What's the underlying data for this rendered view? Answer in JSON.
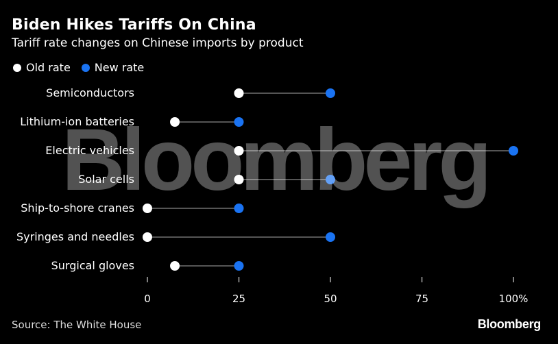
{
  "header": {
    "title": "Biden Hikes Tariffs On China",
    "subtitle": "Tariff rate changes on Chinese imports by product"
  },
  "legend": {
    "old_label": "Old rate",
    "new_label": "New rate"
  },
  "colors": {
    "old": "#ffffff",
    "new": "#1a73f2",
    "line": "#555555",
    "background": "#000000"
  },
  "chart_data": {
    "type": "dumbbell",
    "title": "Biden Hikes Tariffs On China",
    "subtitle": "Tariff rate changes on Chinese imports by product",
    "xlabel": "",
    "ylabel": "",
    "xlim": [
      0,
      100
    ],
    "xticks": [
      0,
      25,
      50,
      75,
      100
    ],
    "xtick_labels": [
      "0",
      "25",
      "50",
      "75",
      "100%"
    ],
    "categories": [
      "Semiconductors",
      "Lithium-ion batteries",
      "Electric vehicles",
      "Solar cells",
      "Ship-to-shore cranes",
      "Syringes and needles",
      "Surgical gloves"
    ],
    "series": [
      {
        "name": "Old rate",
        "values": [
          25,
          7.5,
          25,
          25,
          0,
          0,
          7.5
        ]
      },
      {
        "name": "New rate",
        "values": [
          50,
          25,
          100,
          50,
          25,
          50,
          25
        ]
      }
    ]
  },
  "footer": {
    "source": "Source: The White House",
    "brand": "Bloomberg"
  },
  "watermark": "Bloomberg"
}
